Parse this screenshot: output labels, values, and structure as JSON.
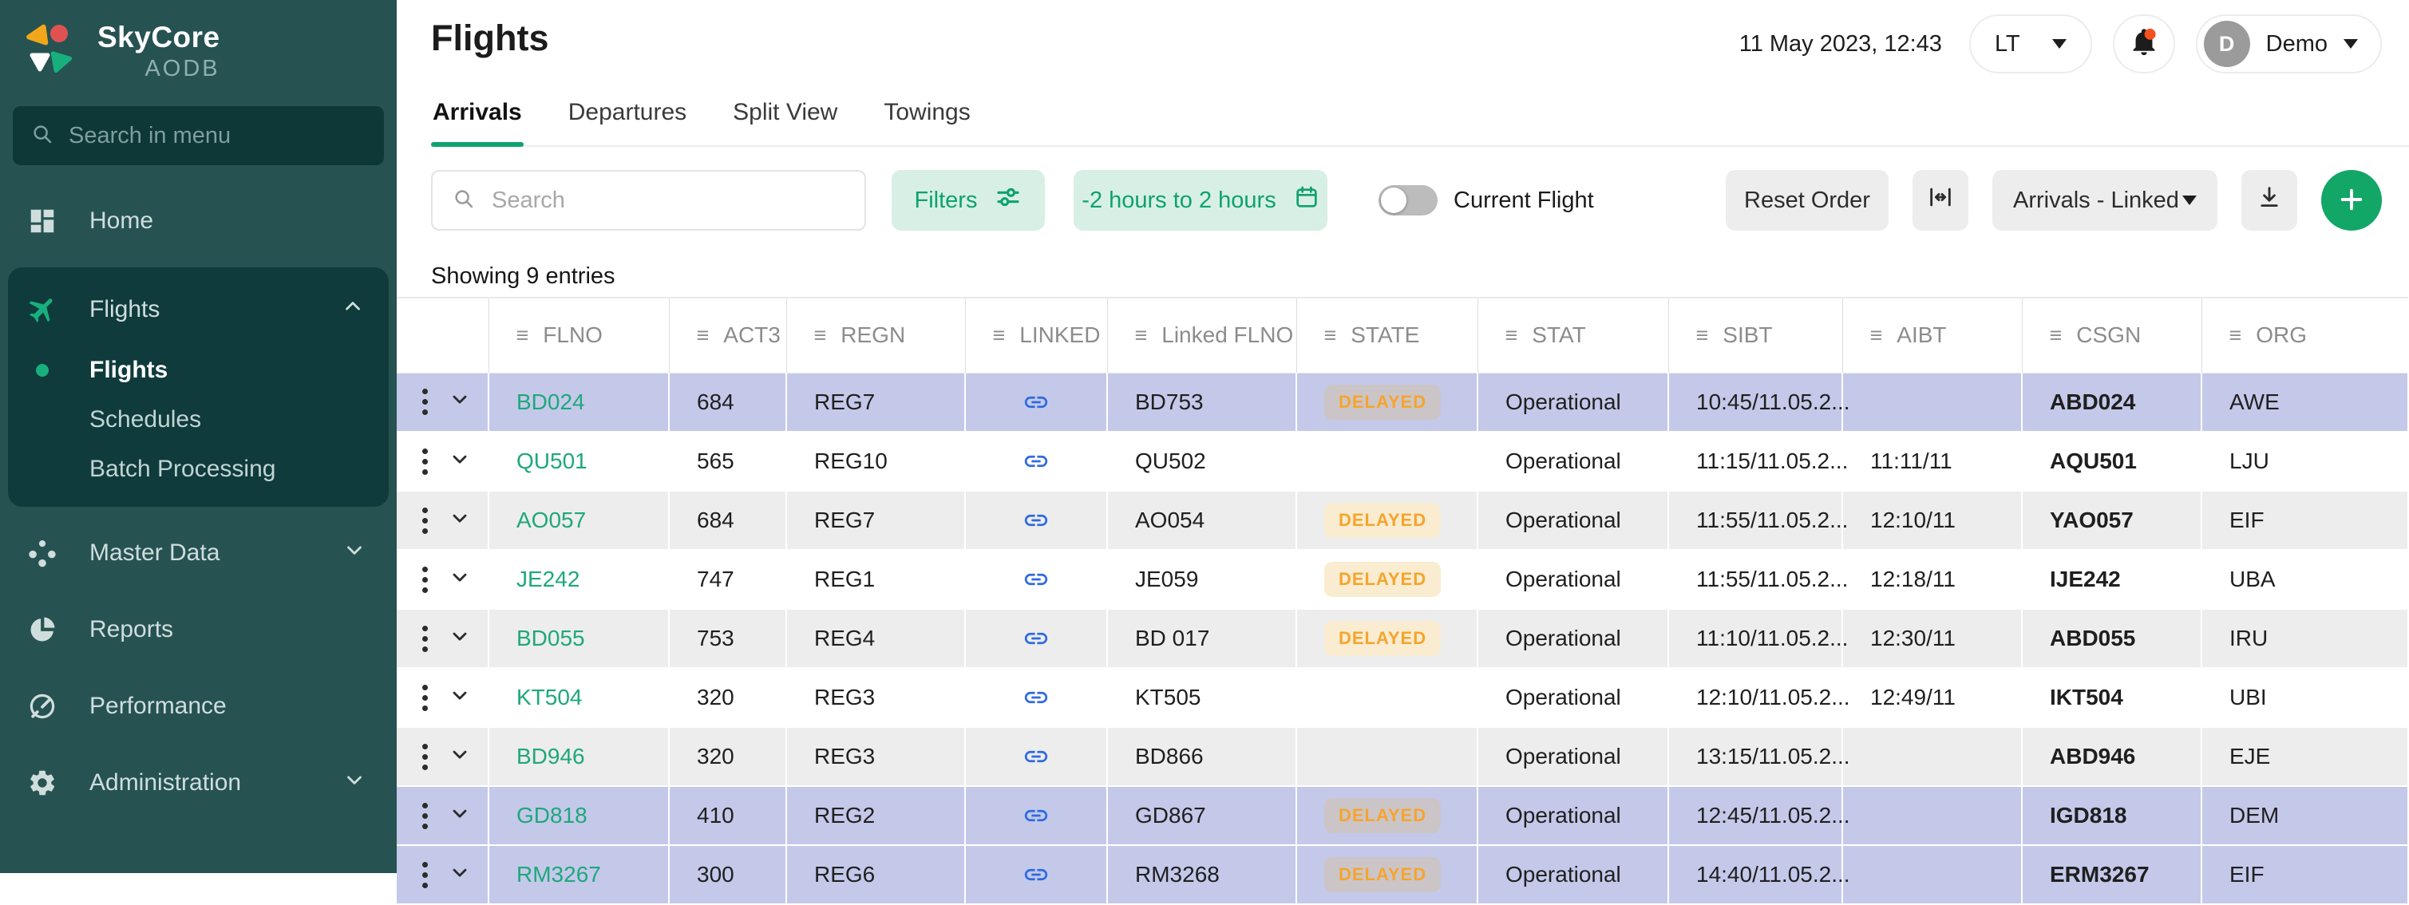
{
  "colors": {
    "accent_green": "#0fa36e",
    "light_green_bg": "#d8efe5",
    "badge_orange_text": "#f6a42c",
    "badge_cream_bg": "#f9ecd0",
    "row_highlight": "#c4c9ea",
    "row_zebra": "#ededed",
    "link_blue": "#2e6ae0",
    "notification_orange": "#f4511e",
    "sidebar_bg": "#275252",
    "sidebar_active_bg": "#0f3b3c"
  },
  "brand": {
    "name": "SkyCore",
    "subtitle": "AODB"
  },
  "sidebar": {
    "search_placeholder": "Search in menu",
    "items": [
      {
        "id": "home",
        "label": "Home",
        "icon": "home-icon"
      },
      {
        "id": "flights-group",
        "label": "Flights",
        "icon": "plane-icon",
        "expanded": true,
        "children": [
          {
            "id": "flights",
            "label": "Flights",
            "active": true
          },
          {
            "id": "schedules",
            "label": "Schedules"
          },
          {
            "id": "batch-processing",
            "label": "Batch Processing"
          }
        ]
      },
      {
        "id": "master-data",
        "label": "Master Data",
        "icon": "nodes-icon",
        "collapsible": true
      },
      {
        "id": "reports",
        "label": "Reports",
        "icon": "pie-icon"
      },
      {
        "id": "performance",
        "label": "Performance",
        "icon": "gauge-icon"
      },
      {
        "id": "administration",
        "label": "Administration",
        "icon": "gear-icon",
        "collapsible": true
      }
    ]
  },
  "header": {
    "title": "Flights",
    "datetime": "11 May 2023, 12:43",
    "timezone": "LT",
    "user_initial": "D",
    "user_name": "Demo"
  },
  "tabs": [
    {
      "label": "Arrivals",
      "active": true
    },
    {
      "label": "Departures",
      "active": false
    },
    {
      "label": "Split View",
      "active": false
    },
    {
      "label": "Towings",
      "active": false
    }
  ],
  "toolbar": {
    "search_placeholder": "Search",
    "filters_label": "Filters",
    "time_range_label": "-2 hours to 2 hours",
    "current_flight_label": "Current Flight",
    "current_flight_on": false,
    "reset_order_label": "Reset Order",
    "view_selector_value": "Arrivals - Linked"
  },
  "summary": "Showing 9 entries",
  "table": {
    "columns": [
      "FLNO",
      "ACT3",
      "REGN",
      "LINKED",
      "Linked FLNO",
      "STATE",
      "STAT",
      "SIBT",
      "AIBT",
      "CSGN",
      "ORG"
    ],
    "rows": [
      {
        "flno": "BD024",
        "act3": "684",
        "regn": "REG7",
        "linked": true,
        "linked_flno": "BD753",
        "state": "DELAYED",
        "stat": "Operational",
        "sibt": "10:45/11.05.2...",
        "aibt": "",
        "csgn": "ABD024",
        "org": "AWE",
        "highlight": "selected"
      },
      {
        "flno": "QU501",
        "act3": "565",
        "regn": "REG10",
        "linked": true,
        "linked_flno": "QU502",
        "state": "",
        "stat": "Operational",
        "sibt": "11:15/11.05.2...",
        "aibt": "11:11/11",
        "csgn": "AQU501",
        "org": "LJU",
        "highlight": "none"
      },
      {
        "flno": "AO057",
        "act3": "684",
        "regn": "REG7",
        "linked": true,
        "linked_flno": "AO054",
        "state": "DELAYED",
        "stat": "Operational",
        "sibt": "11:55/11.05.2...",
        "aibt": "12:10/11",
        "csgn": "YAO057",
        "org": "EIF",
        "highlight": "zebra"
      },
      {
        "flno": "JE242",
        "act3": "747",
        "regn": "REG1",
        "linked": true,
        "linked_flno": "JE059",
        "state": "DELAYED",
        "stat": "Operational",
        "sibt": "11:55/11.05.2...",
        "aibt": "12:18/11",
        "csgn": "IJE242",
        "org": "UBA",
        "highlight": "none"
      },
      {
        "flno": "BD055",
        "act3": "753",
        "regn": "REG4",
        "linked": true,
        "linked_flno": "BD 017",
        "state": "DELAYED",
        "stat": "Operational",
        "sibt": "11:10/11.05.2...",
        "aibt": "12:30/11",
        "csgn": "ABD055",
        "org": "IRU",
        "highlight": "zebra"
      },
      {
        "flno": "KT504",
        "act3": "320",
        "regn": "REG3",
        "linked": true,
        "linked_flno": "KT505",
        "state": "",
        "stat": "Operational",
        "sibt": "12:10/11.05.2...",
        "aibt": "12:49/11",
        "csgn": "IKT504",
        "org": "UBI",
        "highlight": "none"
      },
      {
        "flno": "BD946",
        "act3": "320",
        "regn": "REG3",
        "linked": true,
        "linked_flno": "BD866",
        "state": "",
        "stat": "Operational",
        "sibt": "13:15/11.05.2...",
        "aibt": "",
        "csgn": "ABD946",
        "org": "EJE",
        "highlight": "zebra"
      },
      {
        "flno": "GD818",
        "act3": "410",
        "regn": "REG2",
        "linked": true,
        "linked_flno": "GD867",
        "state": "DELAYED",
        "stat": "Operational",
        "sibt": "12:45/11.05.2...",
        "aibt": "",
        "csgn": "IGD818",
        "org": "DEM",
        "highlight": "selected"
      },
      {
        "flno": "RM3267",
        "act3": "300",
        "regn": "REG6",
        "linked": true,
        "linked_flno": "RM3268",
        "state": "DELAYED",
        "stat": "Operational",
        "sibt": "14:40/11.05.2...",
        "aibt": "",
        "csgn": "ERM3267",
        "org": "EIF",
        "highlight": "selected"
      }
    ]
  }
}
